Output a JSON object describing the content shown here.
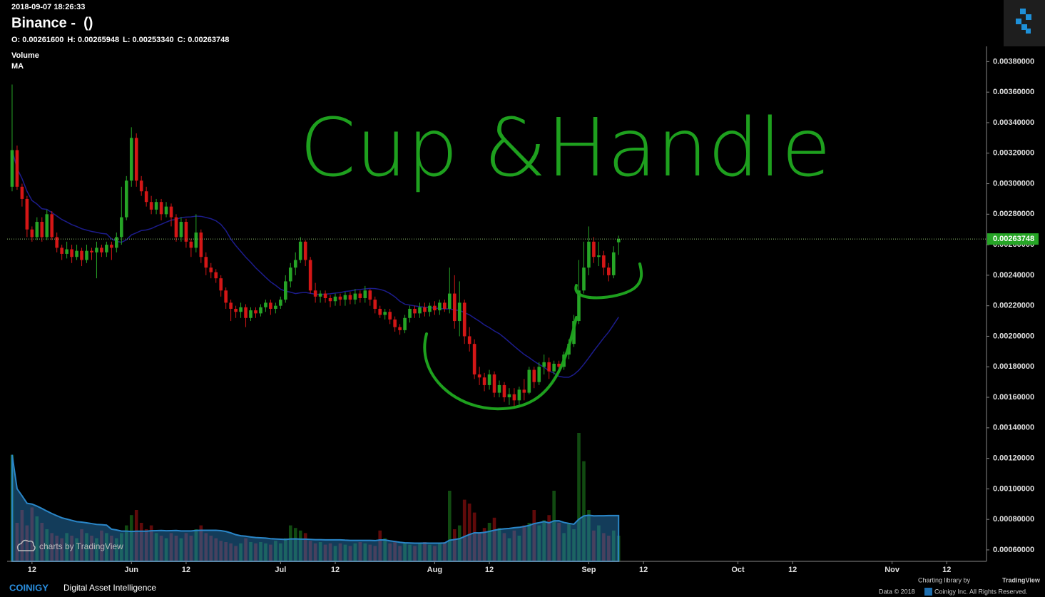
{
  "header": {
    "timestamp": "2018-09-07 18:26:33",
    "title": "Binance -  ()",
    "ohlc": [
      {
        "key": "O:",
        "value": "0.00261600"
      },
      {
        "key": "H:",
        "value": "0.00265948"
      },
      {
        "key": "L:",
        "value": "0.00253340"
      },
      {
        "key": "C:",
        "value": "0.00263748"
      }
    ],
    "indicators": [
      "Volume",
      "MA"
    ]
  },
  "footer": {
    "brand": "COINIGY",
    "tagline": "Digital Asset Intelligence",
    "library": "Charting library by",
    "library_name": "TradingView",
    "copyright": "Data © 2018",
    "rights": "Coinigy Inc. All Rights Reserved.",
    "watermark": "charts by TradingView"
  },
  "chart_data": {
    "type": "candlestick",
    "annotation": "Cup &Handle",
    "last_price_label": "0.00263748",
    "up_color": "#26a526",
    "down_color": "#d41616",
    "ma_color": "#1c1c8c",
    "volume_ma_color": "#2a86c8",
    "ylim": [
      0.000525,
      0.0039
    ],
    "yticks": [
      {
        "value": 0.0006,
        "label": "0.00060000"
      },
      {
        "value": 0.0008,
        "label": "0.00080000"
      },
      {
        "value": 0.001,
        "label": "0.00100000"
      },
      {
        "value": 0.0012,
        "label": "0.00120000"
      },
      {
        "value": 0.0014,
        "label": "0.00140000"
      },
      {
        "value": 0.0016,
        "label": "0.00160000"
      },
      {
        "value": 0.0018,
        "label": "0.00180000"
      },
      {
        "value": 0.002,
        "label": "0.00200000"
      },
      {
        "value": 0.0022,
        "label": "0.00220000"
      },
      {
        "value": 0.0024,
        "label": "0.00240000"
      },
      {
        "value": 0.0026,
        "label": "0.00260000"
      },
      {
        "value": 0.0028,
        "label": "0.00280000"
      },
      {
        "value": 0.003,
        "label": "0.00300000"
      },
      {
        "value": 0.0032,
        "label": "0.00320000"
      },
      {
        "value": 0.0034,
        "label": "0.00340000"
      },
      {
        "value": 0.0036,
        "label": "0.00360000"
      },
      {
        "value": 0.0038,
        "label": "0.00380000"
      }
    ],
    "xlim": [
      "2018-05-07",
      "2018-11-20"
    ],
    "xticks": [
      {
        "value": "2018-05-12",
        "label": "12"
      },
      {
        "value": "2018-06-01",
        "label": "Jun"
      },
      {
        "value": "2018-06-12",
        "label": "12"
      },
      {
        "value": "2018-07-01",
        "label": "Jul"
      },
      {
        "value": "2018-07-12",
        "label": "12"
      },
      {
        "value": "2018-08-01",
        "label": "Aug"
      },
      {
        "value": "2018-08-12",
        "label": "12"
      },
      {
        "value": "2018-09-01",
        "label": "Sep"
      },
      {
        "value": "2018-09-12",
        "label": "12"
      },
      {
        "value": "2018-10-01",
        "label": "Oct"
      },
      {
        "value": "2018-10-12",
        "label": "12"
      },
      {
        "value": "2018-11-01",
        "label": "Nov"
      },
      {
        "value": "2018-11-12",
        "label": "12"
      }
    ],
    "x": [
      "2018-05-08",
      "2018-05-09",
      "2018-05-10",
      "2018-05-11",
      "2018-05-12",
      "2018-05-13",
      "2018-05-14",
      "2018-05-15",
      "2018-05-16",
      "2018-05-17",
      "2018-05-18",
      "2018-05-19",
      "2018-05-20",
      "2018-05-21",
      "2018-05-22",
      "2018-05-23",
      "2018-05-24",
      "2018-05-25",
      "2018-05-26",
      "2018-05-27",
      "2018-05-28",
      "2018-05-29",
      "2018-05-30",
      "2018-05-31",
      "2018-06-01",
      "2018-06-02",
      "2018-06-03",
      "2018-06-04",
      "2018-06-05",
      "2018-06-06",
      "2018-06-07",
      "2018-06-08",
      "2018-06-09",
      "2018-06-10",
      "2018-06-11",
      "2018-06-12",
      "2018-06-13",
      "2018-06-14",
      "2018-06-15",
      "2018-06-16",
      "2018-06-17",
      "2018-06-18",
      "2018-06-19",
      "2018-06-20",
      "2018-06-21",
      "2018-06-22",
      "2018-06-23",
      "2018-06-24",
      "2018-06-25",
      "2018-06-26",
      "2018-06-27",
      "2018-06-28",
      "2018-06-29",
      "2018-06-30",
      "2018-07-01",
      "2018-07-02",
      "2018-07-03",
      "2018-07-04",
      "2018-07-05",
      "2018-07-06",
      "2018-07-07",
      "2018-07-08",
      "2018-07-09",
      "2018-07-10",
      "2018-07-11",
      "2018-07-12",
      "2018-07-13",
      "2018-07-14",
      "2018-07-15",
      "2018-07-16",
      "2018-07-17",
      "2018-07-18",
      "2018-07-19",
      "2018-07-20",
      "2018-07-21",
      "2018-07-22",
      "2018-07-23",
      "2018-07-24",
      "2018-07-25",
      "2018-07-26",
      "2018-07-27",
      "2018-07-28",
      "2018-07-29",
      "2018-07-30",
      "2018-07-31",
      "2018-08-01",
      "2018-08-02",
      "2018-08-03",
      "2018-08-04",
      "2018-08-05",
      "2018-08-06",
      "2018-08-07",
      "2018-08-08",
      "2018-08-09",
      "2018-08-10",
      "2018-08-11",
      "2018-08-12",
      "2018-08-13",
      "2018-08-14",
      "2018-08-15",
      "2018-08-16",
      "2018-08-17",
      "2018-08-18",
      "2018-08-19",
      "2018-08-20",
      "2018-08-21",
      "2018-08-22",
      "2018-08-23",
      "2018-08-24",
      "2018-08-25",
      "2018-08-26",
      "2018-08-27",
      "2018-08-28",
      "2018-08-29",
      "2018-08-30",
      "2018-08-31",
      "2018-09-01",
      "2018-09-02",
      "2018-09-03",
      "2018-09-04",
      "2018-09-05",
      "2018-09-06",
      "2018-09-07"
    ],
    "open": [
      0.00298,
      0.00322,
      0.00298,
      0.0029,
      0.0027,
      0.00265,
      0.00275,
      0.00265,
      0.0028,
      0.00265,
      0.00258,
      0.00254,
      0.00257,
      0.00252,
      0.00256,
      0.0025,
      0.00256,
      0.00255,
      0.00258,
      0.00255,
      0.0026,
      0.00258,
      0.00265,
      0.00278,
      0.00302,
      0.0033,
      0.00302,
      0.00295,
      0.00288,
      0.00283,
      0.00288,
      0.0028,
      0.00285,
      0.00278,
      0.00265,
      0.00275,
      0.00262,
      0.00258,
      0.00268,
      0.00252,
      0.00245,
      0.00242,
      0.00238,
      0.0023,
      0.00222,
      0.00218,
      0.00216,
      0.00219,
      0.00212,
      0.00217,
      0.00215,
      0.00219,
      0.00222,
      0.00218,
      0.0022,
      0.00224,
      0.00236,
      0.00245,
      0.0025,
      0.00262,
      0.0025,
      0.0023,
      0.00226,
      0.00228,
      0.00225,
      0.00223,
      0.00226,
      0.00224,
      0.00227,
      0.00224,
      0.00228,
      0.00225,
      0.0023,
      0.00224,
      0.00218,
      0.00214,
      0.00216,
      0.00211,
      0.00206,
      0.00204,
      0.00212,
      0.00218,
      0.00215,
      0.00219,
      0.00216,
      0.0022,
      0.00217,
      0.00222,
      0.00218,
      0.00228,
      0.0021,
      0.00222,
      0.002,
      0.00195,
      0.00175,
      0.00173,
      0.00168,
      0.00175,
      0.00163,
      0.00168,
      0.0016,
      0.00162,
      0.00158,
      0.00165,
      0.00163,
      0.00178,
      0.0017,
      0.0018,
      0.00183,
      0.00177,
      0.00182,
      0.0018,
      0.00188,
      0.00195,
      0.0021,
      0.0023,
      0.00245,
      0.00262,
      0.00252,
      0.00253,
      0.00245,
      0.0024,
      0.002616
    ],
    "high": [
      0.00365,
      0.00325,
      0.003,
      0.00292,
      0.00272,
      0.00278,
      0.00278,
      0.00283,
      0.00282,
      0.00268,
      0.0026,
      0.00262,
      0.0026,
      0.0026,
      0.00258,
      0.0026,
      0.00258,
      0.00262,
      0.0026,
      0.00262,
      0.00262,
      0.00268,
      0.00298,
      0.00305,
      0.00337,
      0.00333,
      0.00305,
      0.00298,
      0.00292,
      0.0029,
      0.0029,
      0.00288,
      0.00287,
      0.0028,
      0.00278,
      0.00277,
      0.00264,
      0.0028,
      0.0027,
      0.00255,
      0.00248,
      0.00244,
      0.0024,
      0.00232,
      0.00224,
      0.0022,
      0.00222,
      0.00221,
      0.00219,
      0.00219,
      0.00221,
      0.00224,
      0.00224,
      0.00222,
      0.00226,
      0.0024,
      0.00248,
      0.00255,
      0.00265,
      0.00263,
      0.00252,
      0.00235,
      0.0023,
      0.0023,
      0.00227,
      0.00228,
      0.00228,
      0.00229,
      0.00229,
      0.00231,
      0.0023,
      0.00233,
      0.00231,
      0.00226,
      0.0022,
      0.00218,
      0.00218,
      0.00213,
      0.00208,
      0.00214,
      0.0022,
      0.0022,
      0.00222,
      0.00222,
      0.00222,
      0.00223,
      0.00224,
      0.00224,
      0.00245,
      0.0024,
      0.00236,
      0.00224,
      0.00206,
      0.00198,
      0.0018,
      0.00176,
      0.00178,
      0.00177,
      0.00171,
      0.0017,
      0.00166,
      0.00166,
      0.00167,
      0.00172,
      0.0018,
      0.0018,
      0.00183,
      0.00188,
      0.00186,
      0.00184,
      0.00184,
      0.0019,
      0.00198,
      0.00214,
      0.0025,
      0.00262,
      0.00272,
      0.00265,
      0.00262,
      0.00256,
      0.00248,
      0.00259,
      0.00265948
    ],
    "low": [
      0.00295,
      0.00296,
      0.00285,
      0.00265,
      0.00262,
      0.00263,
      0.00262,
      0.00263,
      0.00263,
      0.00255,
      0.0025,
      0.00251,
      0.00248,
      0.0025,
      0.00246,
      0.00248,
      0.0025,
      0.00238,
      0.00252,
      0.00252,
      0.0025,
      0.00255,
      0.0026,
      0.00276,
      0.00298,
      0.00298,
      0.00292,
      0.00285,
      0.0028,
      0.0028,
      0.00276,
      0.00278,
      0.00272,
      0.00262,
      0.00262,
      0.00258,
      0.00252,
      0.00255,
      0.00248,
      0.0024,
      0.00238,
      0.00235,
      0.00226,
      0.00218,
      0.0021,
      0.00212,
      0.00212,
      0.00206,
      0.0021,
      0.00212,
      0.00213,
      0.00216,
      0.00214,
      0.00215,
      0.00218,
      0.00222,
      0.00232,
      0.0024,
      0.00248,
      0.00246,
      0.00228,
      0.00222,
      0.00222,
      0.00222,
      0.00219,
      0.0022,
      0.0022,
      0.0022,
      0.00221,
      0.00221,
      0.00222,
      0.00222,
      0.0022,
      0.00215,
      0.00212,
      0.00211,
      0.00208,
      0.00203,
      0.00201,
      0.00202,
      0.00209,
      0.00212,
      0.00212,
      0.00213,
      0.00213,
      0.00214,
      0.00214,
      0.00216,
      0.00215,
      0.00205,
      0.002,
      0.00195,
      0.0019,
      0.00172,
      0.00168,
      0.00164,
      0.00165,
      0.0016,
      0.0016,
      0.00157,
      0.00155,
      0.00154,
      0.00155,
      0.00158,
      0.00162,
      0.00166,
      0.00168,
      0.00175,
      0.00172,
      0.00175,
      0.00176,
      0.00178,
      0.00185,
      0.00193,
      0.00208,
      0.00228,
      0.0024,
      0.00248,
      0.00246,
      0.0024,
      0.00236,
      0.00238,
      0.0025334
    ],
    "close": [
      0.00322,
      0.00298,
      0.0029,
      0.0027,
      0.00265,
      0.00275,
      0.00265,
      0.0028,
      0.00265,
      0.00258,
      0.00254,
      0.00257,
      0.00252,
      0.00256,
      0.0025,
      0.00256,
      0.00255,
      0.00258,
      0.00255,
      0.0026,
      0.00258,
      0.00265,
      0.00278,
      0.00302,
      0.0033,
      0.00302,
      0.00295,
      0.00288,
      0.00283,
      0.00288,
      0.0028,
      0.00285,
      0.00278,
      0.00265,
      0.00275,
      0.00262,
      0.00258,
      0.00268,
      0.00252,
      0.00245,
      0.00242,
      0.00238,
      0.0023,
      0.00222,
      0.00218,
      0.00216,
      0.00219,
      0.00212,
      0.00217,
      0.00215,
      0.00219,
      0.00222,
      0.00218,
      0.0022,
      0.00224,
      0.00236,
      0.00245,
      0.0025,
      0.00262,
      0.0025,
      0.0023,
      0.00226,
      0.00228,
      0.00225,
      0.00223,
      0.00226,
      0.00224,
      0.00227,
      0.00224,
      0.00228,
      0.00225,
      0.0023,
      0.00224,
      0.00218,
      0.00214,
      0.00216,
      0.00211,
      0.00206,
      0.00204,
      0.00212,
      0.00218,
      0.00215,
      0.00219,
      0.00216,
      0.0022,
      0.00217,
      0.00222,
      0.00218,
      0.00228,
      0.0021,
      0.00222,
      0.002,
      0.00195,
      0.00175,
      0.00173,
      0.00168,
      0.00175,
      0.00163,
      0.00168,
      0.0016,
      0.00162,
      0.00158,
      0.00165,
      0.00163,
      0.00178,
      0.0017,
      0.0018,
      0.00183,
      0.00177,
      0.00182,
      0.0018,
      0.00188,
      0.00195,
      0.0021,
      0.0023,
      0.00245,
      0.00262,
      0.00252,
      0.00253,
      0.00245,
      0.0024,
      0.00255,
      0.00263748
    ],
    "volume": [
      83,
      30,
      40,
      28,
      42,
      35,
      30,
      25,
      22,
      20,
      18,
      22,
      20,
      18,
      25,
      22,
      20,
      18,
      24,
      22,
      20,
      18,
      22,
      28,
      36,
      40,
      30,
      25,
      28,
      22,
      20,
      18,
      22,
      20,
      18,
      22,
      20,
      25,
      28,
      22,
      20,
      18,
      16,
      15,
      14,
      12,
      14,
      18,
      15,
      14,
      15,
      14,
      13,
      16,
      14,
      18,
      28,
      26,
      24,
      22,
      16,
      14,
      15,
      13,
      14,
      12,
      14,
      13,
      12,
      14,
      15,
      14,
      13,
      12,
      24,
      18,
      14,
      16,
      12,
      14,
      13,
      12,
      14,
      15,
      13,
      12,
      14,
      15,
      55,
      25,
      28,
      48,
      45,
      38,
      22,
      26,
      30,
      34,
      26,
      22,
      18,
      24,
      20,
      28,
      30,
      40,
      28,
      32,
      36,
      55,
      30,
      22,
      30,
      25,
      100,
      78,
      40,
      24,
      28,
      22,
      20,
      24,
      20
    ]
  }
}
